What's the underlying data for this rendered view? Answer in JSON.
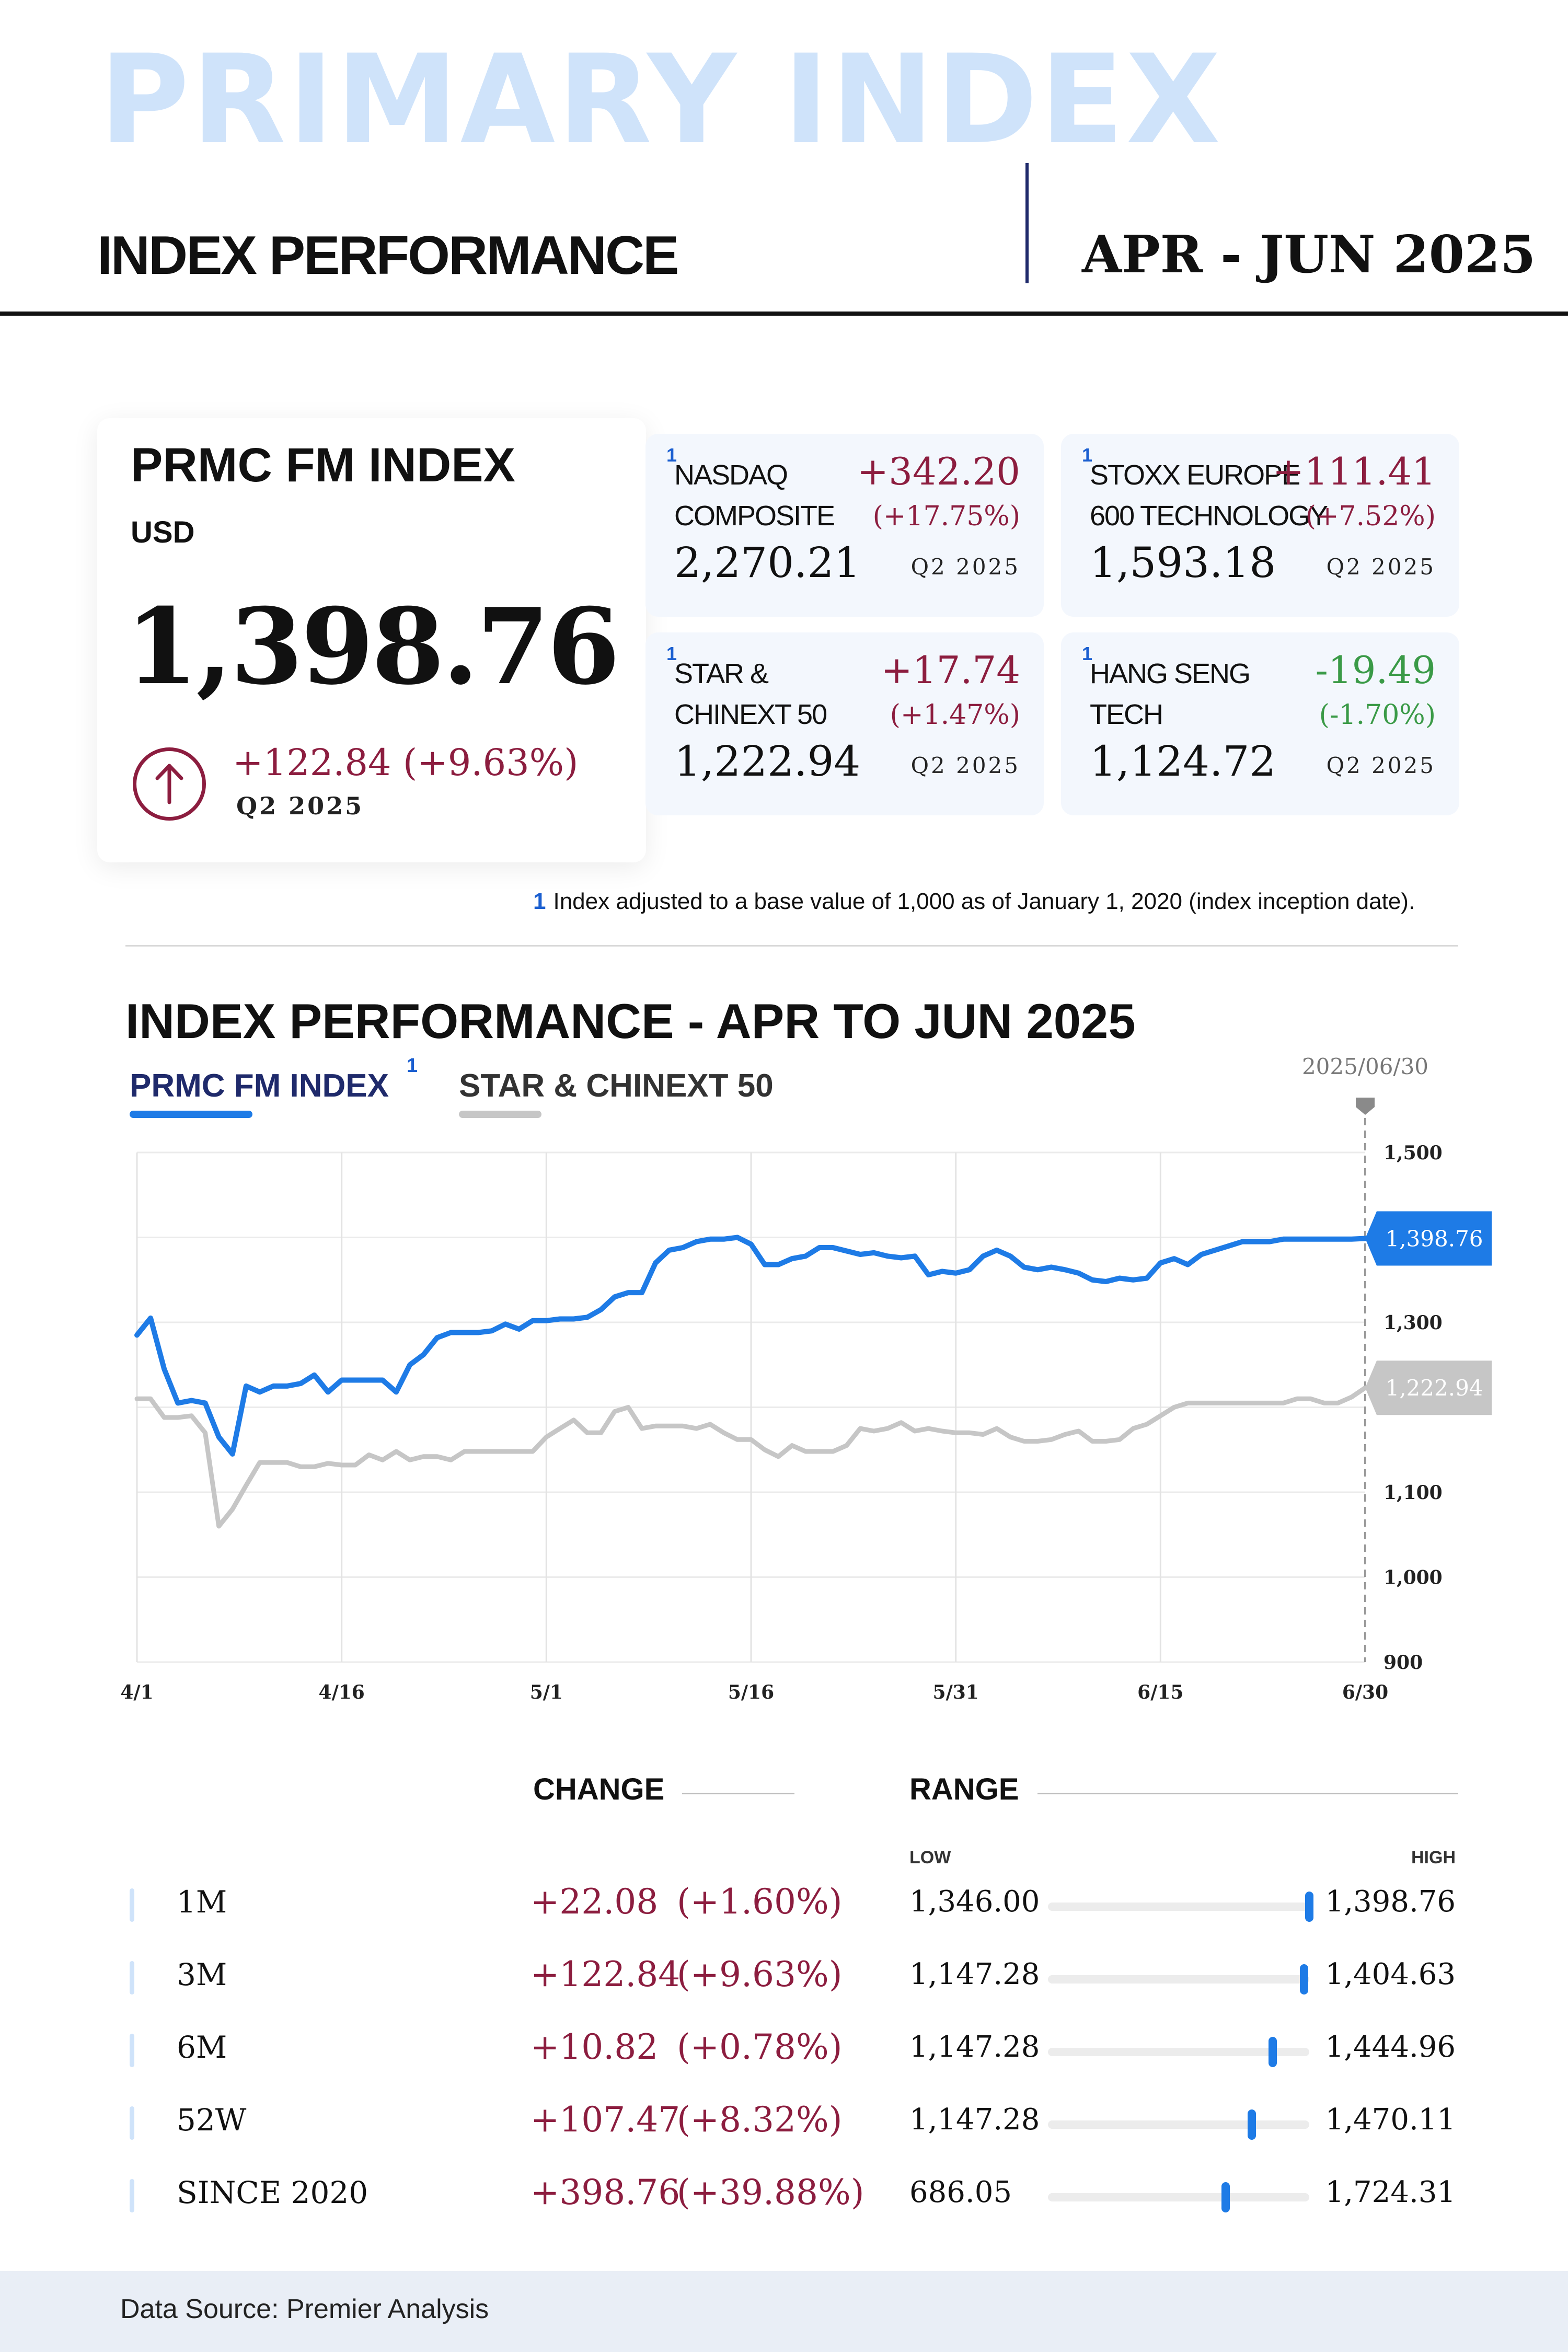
{
  "header": {
    "hero_title": "PRIMARY INDEX",
    "subtitle": "INDEX PERFORMANCE",
    "period": "APR - JUN 2025"
  },
  "main_index": {
    "name": "PRMC FM INDEX",
    "currency": "USD",
    "value": "1,398.76",
    "change": "+122.84 (+9.63%)",
    "period": "Q2 2025",
    "icon": "arrow-up-circle-icon"
  },
  "indices": [
    {
      "sup": "1",
      "name_line1": "NASDAQ",
      "name_line2": "COMPOSITE",
      "value": "2,270.21",
      "delta": "+342.20",
      "pct": "(+17.75%)",
      "period": "Q2 2025",
      "direction": "up"
    },
    {
      "sup": "1",
      "name_line1": "STOXX EUROPE",
      "name_line2": "600 TECHNOLOGY",
      "value": "1,593.18",
      "delta": "+111.41",
      "pct": "(+7.52%)",
      "period": "Q2 2025",
      "direction": "up"
    },
    {
      "sup": "1",
      "name_line1": "STAR &",
      "name_line2": "CHINEXT 50",
      "value": "1,222.94",
      "delta": "+17.74",
      "pct": "(+1.47%)",
      "period": "Q2 2025",
      "direction": "up"
    },
    {
      "sup": "1",
      "name_line1": "HANG SENG",
      "name_line2": "TECH",
      "value": "1,124.72",
      "delta": "-19.49",
      "pct": "(-1.70%)",
      "period": "Q2 2025",
      "direction": "down"
    }
  ],
  "footnote": {
    "num": "1",
    "text": "Index adjusted to a base value of 1,000 as of January 1, 2020 (index inception date)."
  },
  "colors": {
    "accent_blue": "#1e7be6",
    "series_gray": "#c6c6c6",
    "positive": "#8c1d3f",
    "negative": "#3a9a47",
    "hero_light_blue": "#cfe3fa"
  },
  "chart_data": {
    "type": "line",
    "title": "INDEX PERFORMANCE - APR TO JUN 2025",
    "x_tick_labels": [
      "4/1",
      "4/16",
      "5/1",
      "5/16",
      "5/31",
      "6/15",
      "6/30"
    ],
    "y_ticks": [
      900,
      1000,
      1100,
      1300,
      1500
    ],
    "ylim": [
      900,
      1500
    ],
    "y_tick_labels": [
      "900",
      "1,000",
      "1,100",
      "1,300",
      "1,500"
    ],
    "grid": true,
    "marker_label": "2025/06/30",
    "series": [
      {
        "name": "PRMC FM INDEX",
        "sup": "1",
        "color": "#1e7be6",
        "end_label": "1,398.76",
        "x": [
          0,
          1,
          2,
          3,
          4,
          5,
          6,
          7,
          8,
          9,
          10,
          11,
          12,
          13,
          14,
          15,
          16,
          17,
          18,
          19,
          20,
          21,
          22,
          23,
          24,
          25,
          26,
          27,
          28,
          29,
          30,
          31,
          32,
          33,
          34,
          35,
          36,
          37,
          38,
          39,
          40,
          41,
          42,
          43,
          44,
          45,
          46,
          47,
          48,
          49,
          50,
          51,
          52,
          53,
          54,
          55,
          56,
          57,
          58,
          59,
          60,
          61,
          62,
          63,
          64,
          65,
          66,
          67,
          68,
          69,
          70,
          71,
          72,
          73,
          74,
          75,
          76,
          77,
          78,
          79,
          80,
          81,
          82,
          83,
          84,
          85,
          86,
          87,
          88,
          89,
          90
        ],
        "values": [
          1285,
          1305,
          1245,
          1205,
          1208,
          1205,
          1165,
          1145,
          1225,
          1218,
          1225,
          1225,
          1228,
          1238,
          1218,
          1232,
          1232,
          1232,
          1232,
          1218,
          1250,
          1262,
          1282,
          1288,
          1288,
          1288,
          1290,
          1298,
          1292,
          1302,
          1302,
          1304,
          1304,
          1306,
          1315,
          1330,
          1335,
          1335,
          1370,
          1385,
          1388,
          1395,
          1398,
          1398,
          1400,
          1392,
          1368,
          1368,
          1375,
          1378,
          1388,
          1388,
          1384,
          1380,
          1382,
          1378,
          1376,
          1378,
          1356,
          1360,
          1358,
          1362,
          1378,
          1385,
          1378,
          1365,
          1362,
          1365,
          1362,
          1358,
          1350,
          1348,
          1352,
          1350,
          1352,
          1370,
          1375,
          1368,
          1380,
          1385,
          1390,
          1395,
          1395,
          1395,
          1398,
          1398,
          1398,
          1398,
          1398,
          1398,
          1398.76
        ]
      },
      {
        "name": "STAR & CHINEXT 50",
        "color": "#c6c6c6",
        "end_label": "1,222.94",
        "x": [
          0,
          1,
          2,
          3,
          4,
          5,
          6,
          7,
          8,
          9,
          10,
          11,
          12,
          13,
          14,
          15,
          16,
          17,
          18,
          19,
          20,
          21,
          22,
          23,
          24,
          25,
          26,
          27,
          28,
          29,
          30,
          31,
          32,
          33,
          34,
          35,
          36,
          37,
          38,
          39,
          40,
          41,
          42,
          43,
          44,
          45,
          46,
          47,
          48,
          49,
          50,
          51,
          52,
          53,
          54,
          55,
          56,
          57,
          58,
          59,
          60,
          61,
          62,
          63,
          64,
          65,
          66,
          67,
          68,
          69,
          70,
          71,
          72,
          73,
          74,
          75,
          76,
          77,
          78,
          79,
          80,
          81,
          82,
          83,
          84,
          85,
          86,
          87,
          88,
          89,
          90
        ],
        "values": [
          1210,
          1210,
          1188,
          1188,
          1190,
          1170,
          1060,
          1080,
          1108,
          1135,
          1135,
          1135,
          1130,
          1130,
          1134,
          1132,
          1132,
          1144,
          1138,
          1148,
          1138,
          1142,
          1142,
          1138,
          1148,
          1148,
          1148,
          1148,
          1148,
          1148,
          1165,
          1175,
          1185,
          1170,
          1170,
          1195,
          1200,
          1175,
          1178,
          1178,
          1178,
          1175,
          1180,
          1170,
          1162,
          1162,
          1150,
          1142,
          1155,
          1148,
          1148,
          1148,
          1155,
          1175,
          1172,
          1175,
          1182,
          1172,
          1175,
          1172,
          1170,
          1170,
          1168,
          1175,
          1165,
          1160,
          1160,
          1162,
          1168,
          1172,
          1160,
          1160,
          1162,
          1175,
          1180,
          1190,
          1200,
          1205,
          1205,
          1205,
          1205,
          1205,
          1205,
          1205,
          1205,
          1210,
          1210,
          1205,
          1205,
          1212,
          1222.94
        ]
      }
    ]
  },
  "stats": {
    "change_header": "CHANGE",
    "range_header": "RANGE",
    "low_label": "LOW",
    "high_label": "HIGH",
    "rows": [
      {
        "label": "1M",
        "change": "+22.08",
        "pct": "(+1.60%)",
        "low": "1,346.00",
        "high": "1,398.76",
        "position": 1.0
      },
      {
        "label": "3M",
        "change": "+122.84",
        "pct": "(+9.63%)",
        "low": "1,147.28",
        "high": "1,404.63",
        "position": 0.98
      },
      {
        "label": "6M",
        "change": "+10.82",
        "pct": "(+0.78%)",
        "low": "1,147.28",
        "high": "1,444.96",
        "position": 0.86
      },
      {
        "label": "52W",
        "change": "+107.47",
        "pct": "(+8.32%)",
        "low": "1,147.28",
        "high": "1,470.11",
        "position": 0.78
      },
      {
        "label": "SINCE 2020",
        "change": "+398.76",
        "pct": "(+39.88%)",
        "low": "686.05",
        "high": "1,724.31",
        "position": 0.68
      }
    ]
  },
  "footer": {
    "source": "Data Source: Premier Analysis"
  }
}
